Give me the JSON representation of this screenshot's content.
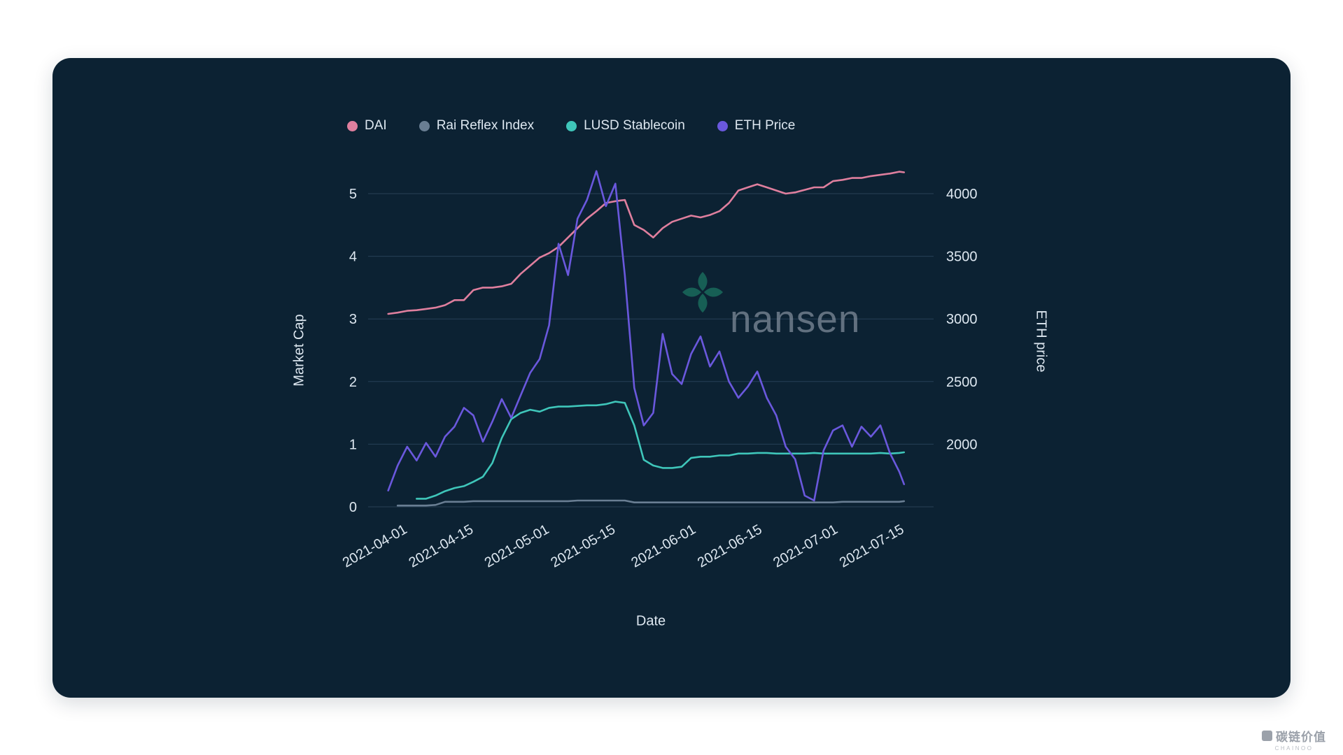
{
  "page": {
    "background": "#ffffff",
    "colors": {
      "card_bg": "#0c2233",
      "text": "#dde7f0",
      "grid": "rgba(127,165,199,0.24)"
    }
  },
  "watermark": {
    "brand": "nansen",
    "logo_color": "#1a6f5e",
    "text_color": "rgba(150,160,175,0.62)"
  },
  "corner_watermark": {
    "text": "碳链价值",
    "subtext": "CHAINOO"
  },
  "chart_data": {
    "type": "line",
    "title": "",
    "x_label": "Date",
    "y_left_label": "Market Cap",
    "y_right_label": "ETH price",
    "legend_position": "top",
    "grid": true,
    "y_left_ticks": [
      0,
      1,
      2,
      3,
      4,
      5
    ],
    "y_right_ticks": [
      2000,
      2500,
      3000,
      3500,
      4000
    ],
    "y_left_range": [
      0,
      5.5
    ],
    "y_right_range": [
      1500,
      4250
    ],
    "x_tick_labels": [
      "2021-04-01",
      "2021-04-15",
      "2021-05-01",
      "2021-05-15",
      "2021-06-01",
      "2021-06-15",
      "2021-07-01",
      "2021-07-15"
    ],
    "x": [
      "2021-03-29",
      "2021-03-31",
      "2021-04-02",
      "2021-04-04",
      "2021-04-06",
      "2021-04-08",
      "2021-04-10",
      "2021-04-12",
      "2021-04-14",
      "2021-04-16",
      "2021-04-18",
      "2021-04-20",
      "2021-04-22",
      "2021-04-24",
      "2021-04-26",
      "2021-04-28",
      "2021-04-30",
      "2021-05-02",
      "2021-05-04",
      "2021-05-06",
      "2021-05-08",
      "2021-05-10",
      "2021-05-12",
      "2021-05-14",
      "2021-05-16",
      "2021-05-18",
      "2021-05-20",
      "2021-05-22",
      "2021-05-24",
      "2021-05-26",
      "2021-05-28",
      "2021-05-30",
      "2021-06-01",
      "2021-06-03",
      "2021-06-05",
      "2021-06-07",
      "2021-06-09",
      "2021-06-11",
      "2021-06-13",
      "2021-06-15",
      "2021-06-17",
      "2021-06-19",
      "2021-06-21",
      "2021-06-23",
      "2021-06-25",
      "2021-06-27",
      "2021-06-29",
      "2021-07-01",
      "2021-07-03",
      "2021-07-05",
      "2021-07-07",
      "2021-07-09",
      "2021-07-11",
      "2021-07-13",
      "2021-07-15",
      "2021-07-16"
    ],
    "series": [
      {
        "name": "DAI",
        "yaxis": "left",
        "unit": "billion USD",
        "color": "#df7f9e",
        "values": [
          3.08,
          3.1,
          3.13,
          3.14,
          3.16,
          3.18,
          3.22,
          3.3,
          3.3,
          3.46,
          3.5,
          3.5,
          3.52,
          3.56,
          3.72,
          3.85,
          3.98,
          4.05,
          4.15,
          4.3,
          4.45,
          4.6,
          4.72,
          4.85,
          4.88,
          4.9,
          4.5,
          4.42,
          4.3,
          4.45,
          4.55,
          4.6,
          4.65,
          4.62,
          4.66,
          4.72,
          4.85,
          5.05,
          5.1,
          5.15,
          5.1,
          5.05,
          5.0,
          5.02,
          5.06,
          5.1,
          5.1,
          5.2,
          5.22,
          5.25,
          5.25,
          5.28,
          5.3,
          5.32,
          5.35,
          5.34
        ]
      },
      {
        "name": "Rai Reflex Index",
        "yaxis": "left",
        "unit": "billion USD",
        "color": "#697e93",
        "values": [
          null,
          0.02,
          0.02,
          0.02,
          0.02,
          0.03,
          0.08,
          0.08,
          0.08,
          0.09,
          0.09,
          0.09,
          0.09,
          0.09,
          0.09,
          0.09,
          0.09,
          0.09,
          0.09,
          0.09,
          0.1,
          0.1,
          0.1,
          0.1,
          0.1,
          0.1,
          0.07,
          0.07,
          0.07,
          0.07,
          0.07,
          0.07,
          0.07,
          0.07,
          0.07,
          0.07,
          0.07,
          0.07,
          0.07,
          0.07,
          0.07,
          0.07,
          0.07,
          0.07,
          0.07,
          0.07,
          0.07,
          0.07,
          0.08,
          0.08,
          0.08,
          0.08,
          0.08,
          0.08,
          0.08,
          0.09
        ]
      },
      {
        "name": "LUSD Stablecoin",
        "yaxis": "left",
        "unit": "billion USD",
        "color": "#3fc6ba",
        "values": [
          null,
          null,
          null,
          0.13,
          0.13,
          0.18,
          0.25,
          0.3,
          0.33,
          0.4,
          0.48,
          0.7,
          1.1,
          1.4,
          1.5,
          1.55,
          1.52,
          1.58,
          1.6,
          1.6,
          1.61,
          1.62,
          1.62,
          1.64,
          1.68,
          1.66,
          1.3,
          0.75,
          0.66,
          0.62,
          0.62,
          0.64,
          0.78,
          0.8,
          0.8,
          0.82,
          0.82,
          0.85,
          0.85,
          0.86,
          0.86,
          0.85,
          0.85,
          0.85,
          0.85,
          0.86,
          0.85,
          0.85,
          0.85,
          0.85,
          0.85,
          0.85,
          0.86,
          0.85,
          0.86,
          0.87
        ]
      },
      {
        "name": "ETH Price",
        "yaxis": "right",
        "unit": "USD",
        "color": "#6a58dd",
        "values": [
          1630,
          1830,
          1980,
          1870,
          2010,
          1900,
          2060,
          2140,
          2290,
          2230,
          2020,
          2180,
          2360,
          2210,
          2390,
          2570,
          2680,
          2950,
          3600,
          3350,
          3800,
          3950,
          4180,
          3900,
          4080,
          3350,
          2450,
          2150,
          2250,
          2880,
          2560,
          2480,
          2720,
          2860,
          2620,
          2740,
          2500,
          2370,
          2460,
          2580,
          2370,
          2230,
          1980,
          1880,
          1590,
          1550,
          1950,
          2110,
          2150,
          1980,
          2140,
          2060,
          2150,
          1930,
          1780,
          1680
        ]
      }
    ]
  }
}
